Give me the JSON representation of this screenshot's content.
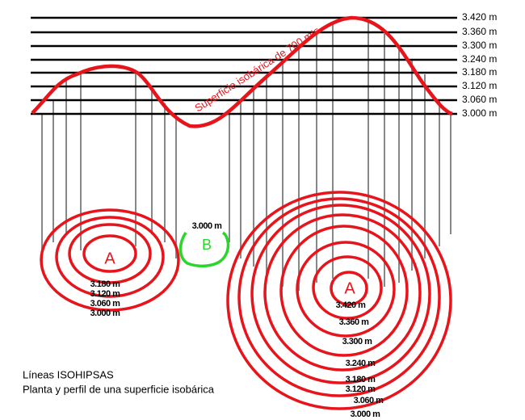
{
  "profile": {
    "levels": [
      "3.420 m",
      "3.360 m",
      "3.300 m",
      "3.240 m",
      "3.180 m",
      "3.120 m",
      "3.060 m",
      "3.000 m"
    ],
    "curve_label": "Superficie isobárica de 700 mts"
  },
  "plan": {
    "left_high": {
      "label": "A",
      "contours": [
        "3.180 m",
        "3.120 m",
        "3.060 m",
        "3.000 m"
      ]
    },
    "low": {
      "label": "B",
      "contour": "3.000 m"
    },
    "right_high": {
      "label": "A",
      "contours": [
        "3.420 m",
        "3.360 m",
        "3.300 m",
        "3.240 m",
        "3.180 m",
        "3.120 m",
        "3.060 m",
        "3.000 m"
      ]
    }
  },
  "caption": {
    "title": "Líneas ISOHIPSAS",
    "subtitle": "Planta y perfil de una superficie isobárica"
  }
}
